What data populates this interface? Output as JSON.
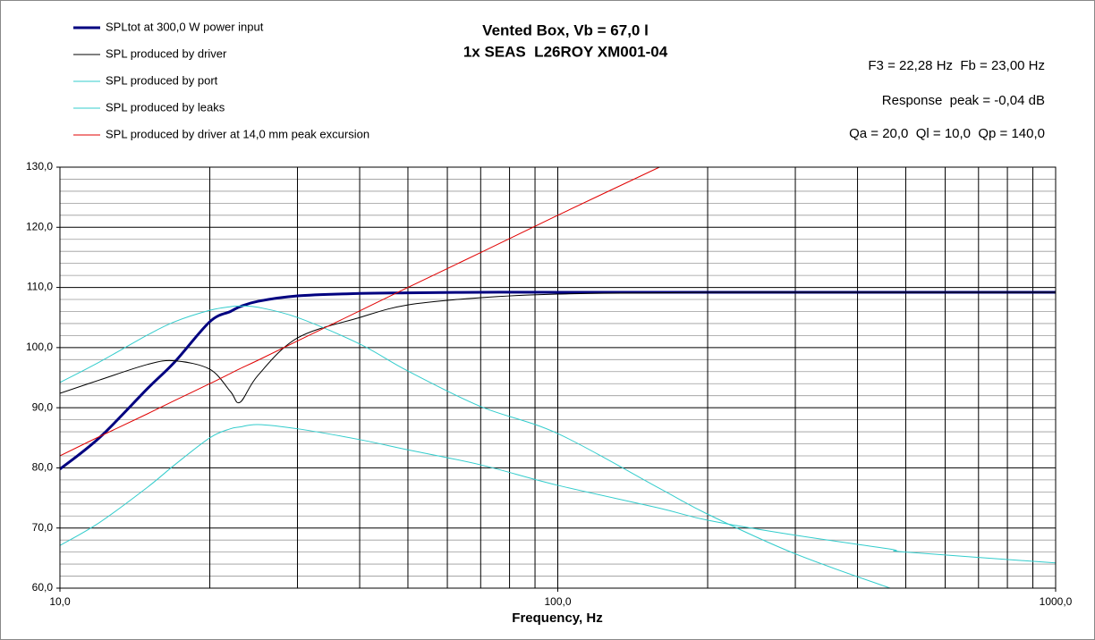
{
  "chart_data": {
    "type": "line",
    "title": [
      "Vented Box, Vb = 67,0 l",
      "1x SEAS  L26ROY XM001-04"
    ],
    "annotations": [
      "F3 = 22,28 Hz  Fb = 23,00 Hz",
      "Response  peak = -0,04 dB",
      "Qa = 20,0  Ql = 10,0  Qp = 140,0"
    ],
    "x_label": "Frequency, Hz",
    "log_x": true,
    "grid": true,
    "legend": "top-left",
    "x": [
      10,
      12,
      15,
      17,
      20,
      22,
      23,
      25,
      30,
      40,
      50,
      70,
      100,
      160,
      200,
      300,
      465,
      500,
      1000
    ],
    "series": [
      {
        "name": "SPLtot at 300,0 W power input",
        "color": "#000080",
        "width": 3,
        "values": [
          79.8,
          85.0,
          93.2,
          97.6,
          104.3,
          106.0,
          106.8,
          107.7,
          108.6,
          109.0,
          109.1,
          109.2,
          109.2,
          109.2,
          109.2,
          109.2,
          109.2,
          109.2,
          109.2
        ]
      },
      {
        "name": "SPL produced by driver",
        "color": "#000000",
        "width": 1,
        "values": [
          92.4,
          94.6,
          97.2,
          97.8,
          96.4,
          92.7,
          90.9,
          95.4,
          101.6,
          105.0,
          107.1,
          108.3,
          108.9,
          109.1,
          109.2,
          109.2,
          109.2,
          109.2,
          109.2
        ]
      },
      {
        "name": "SPL produced by port",
        "color": "#33cccc",
        "width": 1,
        "values": [
          94.2,
          97.6,
          102.1,
          104.3,
          106.2,
          106.8,
          106.9,
          106.7,
          105.0,
          100.6,
          96.1,
          90.2,
          85.7,
          76.6,
          72.3,
          65.7,
          60.0,
          null,
          null
        ]
      },
      {
        "name": "SPL produced by leaks",
        "color": "#33cccc",
        "width": 1,
        "values": [
          67.1,
          70.9,
          76.8,
          80.5,
          85.0,
          86.5,
          86.8,
          87.2,
          86.5,
          84.7,
          83.0,
          80.5,
          77.1,
          73.3,
          71.3,
          68.8,
          66.5,
          66.0,
          64.2
        ]
      },
      {
        "name": "SPL produced by driver at 14,0 mm peak excursion",
        "color": "#e00000",
        "width": 1,
        "values": [
          82.0,
          85.2,
          89.0,
          91.2,
          94.0,
          95.7,
          96.5,
          97.9,
          101.1,
          106.1,
          110.0,
          115.8,
          122.0,
          130.0,
          null,
          null,
          null,
          null,
          null
        ]
      }
    ],
    "xlim": [
      10,
      1000
    ],
    "xticks": [
      {
        "value": 10,
        "label": "10,0"
      },
      {
        "value": 100,
        "label": "100,0"
      },
      {
        "value": 1000,
        "label": "1000,0"
      }
    ],
    "x_minor_ticks": [
      20,
      30,
      40,
      50,
      60,
      70,
      80,
      90,
      200,
      300,
      400,
      500,
      600,
      700,
      800,
      900
    ],
    "ylim": [
      60,
      130
    ],
    "yticks": [
      {
        "value": 60,
        "label": "60,0"
      },
      {
        "value": 70,
        "label": "70,0"
      },
      {
        "value": 80,
        "label": "80,0"
      },
      {
        "value": 90,
        "label": "90,0"
      },
      {
        "value": 100,
        "label": "100,0"
      },
      {
        "value": 110,
        "label": "110,0"
      },
      {
        "value": 120,
        "label": "120,0"
      },
      {
        "value": 130,
        "label": "130,0"
      }
    ],
    "y_minor_ticks": [
      62,
      64,
      66,
      68,
      72,
      74,
      76,
      78,
      82,
      84,
      86,
      88,
      92,
      94,
      96,
      98,
      102,
      104,
      106,
      108,
      112,
      114,
      116,
      118,
      122,
      124,
      126,
      128
    ]
  }
}
